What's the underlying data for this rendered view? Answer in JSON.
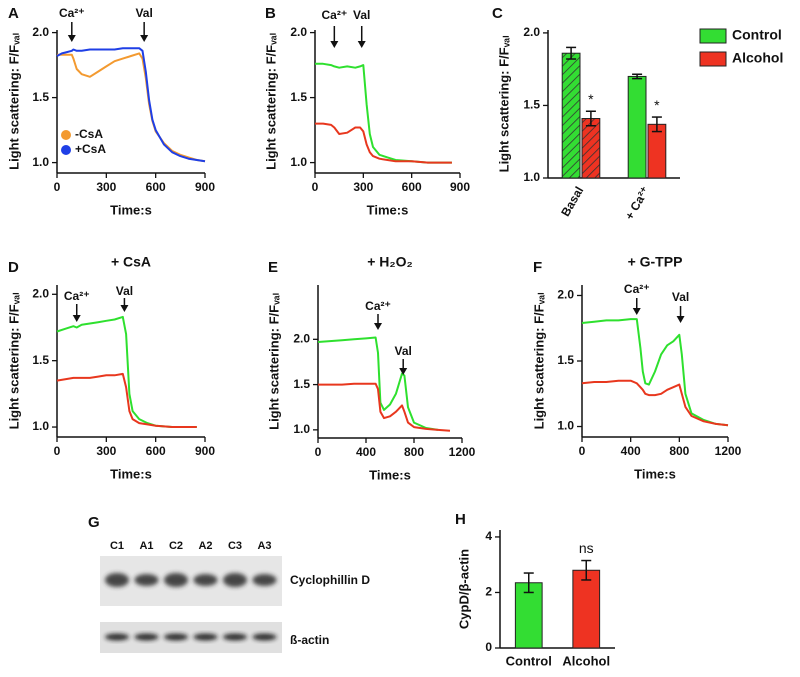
{
  "chart_data": [
    {
      "type": "line",
      "panel": "A",
      "y_label": "Light scattering: F/Fᵥₐₗ",
      "x_label": "Time:s",
      "xlim": [
        0,
        900
      ],
      "xticks": [
        0,
        300,
        600,
        900
      ],
      "ylim": [
        0.92,
        2.02
      ],
      "yticks": [
        {
          "value": 1,
          "label": "1.0"
        },
        1.5,
        {
          "value": 2,
          "label": "2.0"
        }
      ],
      "legend": "lower left",
      "x": [
        0,
        30,
        60,
        90,
        100,
        120,
        150,
        200,
        250,
        300,
        350,
        400,
        450,
        500,
        520,
        540,
        560,
        580,
        600,
        650,
        700,
        750,
        800,
        850,
        900
      ],
      "series": [
        {
          "name": "-CsA",
          "color": "#f39a30",
          "values": [
            1.83,
            1.83,
            1.83,
            1.83,
            1.8,
            1.72,
            1.68,
            1.66,
            1.7,
            1.74,
            1.78,
            1.8,
            1.82,
            1.84,
            1.8,
            1.65,
            1.45,
            1.32,
            1.24,
            1.15,
            1.09,
            1.06,
            1.04,
            1.02,
            1.01
          ]
        },
        {
          "name": "+CsA",
          "color": "#1f3fe6",
          "values": [
            1.82,
            1.84,
            1.85,
            1.86,
            1.87,
            1.86,
            1.86,
            1.87,
            1.87,
            1.87,
            1.87,
            1.88,
            1.88,
            1.88,
            1.86,
            1.7,
            1.48,
            1.33,
            1.25,
            1.14,
            1.08,
            1.05,
            1.03,
            1.02,
            1.01
          ]
        }
      ],
      "annotations": [
        {
          "text": "Ca²⁺",
          "x": 90
        },
        {
          "text": "Val",
          "x": 530
        }
      ]
    },
    {
      "type": "line",
      "panel": "B",
      "y_label": "Light scattering: F/Fᵥₐₗ",
      "x_label": "Time:s",
      "xlim": [
        0,
        900
      ],
      "xticks": [
        0,
        300,
        600,
        900
      ],
      "ylim": [
        0.92,
        2.02
      ],
      "yticks": [
        {
          "value": 1,
          "label": "1.0"
        },
        1.5,
        {
          "value": 2,
          "label": "2.0"
        }
      ],
      "x": [
        0,
        50,
        100,
        120,
        150,
        200,
        250,
        280,
        300,
        320,
        340,
        360,
        400,
        450,
        500,
        600,
        700,
        800,
        850
      ],
      "series": [
        {
          "name": "Control",
          "color": "#2ee02e",
          "values": [
            1.76,
            1.76,
            1.75,
            1.74,
            1.73,
            1.74,
            1.73,
            1.74,
            1.75,
            1.45,
            1.22,
            1.12,
            1.06,
            1.04,
            1.02,
            1.01,
            1.0,
            1.0,
            1.0
          ]
        },
        {
          "name": "Alcohol",
          "color": "#e8371e",
          "values": [
            1.3,
            1.3,
            1.29,
            1.27,
            1.22,
            1.23,
            1.27,
            1.27,
            1.24,
            1.14,
            1.08,
            1.05,
            1.03,
            1.02,
            1.01,
            1.01,
            1.0,
            1.0,
            1.0
          ]
        }
      ],
      "annotations": [
        {
          "text": "Ca²⁺",
          "x": 120
        },
        {
          "text": "Val",
          "x": 290
        }
      ]
    },
    {
      "type": "bar",
      "panel": "C",
      "y_label": "Light scattering: F/Fᵥₐₗ",
      "categories": [
        "Basal",
        "+ Ca²⁺"
      ],
      "hatched": [
        true,
        false
      ],
      "ylim": [
        1.0,
        2.02
      ],
      "yticks": [
        {
          "value": 1,
          "label": "1.0"
        },
        1.5,
        {
          "value": 2,
          "label": "2.0"
        }
      ],
      "legend": "upper right",
      "series": [
        {
          "name": "Control",
          "color": "#33dd33",
          "values": [
            1.86,
            1.7
          ],
          "errors": [
            0.04,
            0.015
          ]
        },
        {
          "name": "Alcohol",
          "color": "#ee3322",
          "values": [
            1.41,
            1.37
          ],
          "errors": [
            0.05,
            0.05
          ]
        }
      ],
      "annotations": [
        {
          "series": 1,
          "category": 0,
          "text": "*"
        },
        {
          "series": 1,
          "category": 1,
          "text": "*"
        }
      ]
    },
    {
      "type": "line",
      "panel": "D",
      "title": "+ CsA",
      "y_label": "Light scattering: F/Fᵥₐₗ",
      "x_label": "Time:s",
      "xlim": [
        0,
        900
      ],
      "xticks": [
        0,
        300,
        600,
        900
      ],
      "ylim": [
        0.925,
        2.07
      ],
      "yticks": [
        {
          "value": 1,
          "label": "1.0"
        },
        1.5,
        {
          "value": 2,
          "label": "2.0"
        }
      ],
      "x": [
        0,
        50,
        100,
        120,
        150,
        200,
        250,
        300,
        350,
        400,
        420,
        440,
        460,
        500,
        550,
        600,
        700,
        800,
        850
      ],
      "series": [
        {
          "name": "Control",
          "color": "#2ee02e",
          "values": [
            1.72,
            1.74,
            1.76,
            1.75,
            1.77,
            1.78,
            1.79,
            1.8,
            1.81,
            1.83,
            1.7,
            1.25,
            1.12,
            1.06,
            1.03,
            1.01,
            1.0,
            1.0,
            1.0
          ]
        },
        {
          "name": "Alcohol",
          "color": "#e8371e",
          "values": [
            1.35,
            1.36,
            1.37,
            1.37,
            1.37,
            1.37,
            1.38,
            1.39,
            1.39,
            1.4,
            1.3,
            1.12,
            1.06,
            1.03,
            1.02,
            1.01,
            1.0,
            1.0,
            1.0
          ]
        }
      ],
      "annotations": [
        {
          "text": "Ca²⁺",
          "x": 120
        },
        {
          "text": "Val",
          "x": 410
        }
      ]
    },
    {
      "type": "line",
      "panel": "E",
      "title": "+ H₂O₂",
      "y_label": "Light scattering: F/Fᵥₐₗ",
      "x_label": "Time:s",
      "xlim": [
        0,
        1200
      ],
      "xticks": [
        0,
        400,
        800,
        1200
      ],
      "ylim": [
        0.91,
        2.6
      ],
      "yticks": [
        {
          "value": 1,
          "label": "1.0"
        },
        1.5,
        {
          "value": 2,
          "label": "2.0"
        }
      ],
      "x": [
        0,
        100,
        200,
        300,
        400,
        480,
        500,
        520,
        550,
        600,
        650,
        700,
        720,
        750,
        800,
        900,
        1000,
        1100
      ],
      "series": [
        {
          "name": "Control",
          "color": "#2ee02e",
          "values": [
            1.97,
            1.98,
            1.99,
            2.0,
            2.01,
            2.02,
            1.85,
            1.3,
            1.22,
            1.28,
            1.4,
            1.62,
            1.6,
            1.25,
            1.08,
            1.02,
            1.0,
            null
          ]
        },
        {
          "name": "Alcohol",
          "color": "#e8371e",
          "values": [
            1.5,
            1.5,
            1.5,
            1.51,
            1.51,
            1.51,
            1.45,
            1.2,
            1.13,
            1.15,
            1.2,
            1.27,
            1.2,
            1.08,
            1.03,
            1.01,
            1.0,
            0.99
          ]
        }
      ],
      "annotations": [
        {
          "text": "Ca²⁺",
          "x": 500
        },
        {
          "text": "Val",
          "x": 710
        }
      ]
    },
    {
      "type": "line",
      "panel": "F",
      "title": "+ G-TPP",
      "y_label": "Light scattering: F/Fᵥₐₗ",
      "x_label": "Time:s",
      "xlim": [
        0,
        1200
      ],
      "xticks": [
        0,
        400,
        800,
        1200
      ],
      "ylim": [
        0.92,
        2.08
      ],
      "yticks": [
        {
          "value": 1,
          "label": "1.0"
        },
        1.5,
        {
          "value": 2,
          "label": "2.0"
        }
      ],
      "x": [
        0,
        100,
        200,
        300,
        400,
        450,
        480,
        500,
        520,
        550,
        600,
        650,
        700,
        750,
        800,
        820,
        850,
        900,
        1000,
        1100,
        1200
      ],
      "series": [
        {
          "name": "Control",
          "color": "#2ee02e",
          "values": [
            1.79,
            1.8,
            1.81,
            1.81,
            1.82,
            1.82,
            1.6,
            1.42,
            1.33,
            1.32,
            1.42,
            1.55,
            1.62,
            1.65,
            1.7,
            1.55,
            1.25,
            1.1,
            1.05,
            1.02,
            1.01
          ]
        },
        {
          "name": "Alcohol",
          "color": "#e8371e",
          "values": [
            1.33,
            1.34,
            1.34,
            1.35,
            1.35,
            1.33,
            1.3,
            1.28,
            1.25,
            1.24,
            1.24,
            1.25,
            1.28,
            1.3,
            1.32,
            1.25,
            1.15,
            1.08,
            1.04,
            1.02,
            1.01
          ]
        }
      ],
      "annotations": [
        {
          "text": "Ca²⁺",
          "x": 450
        },
        {
          "text": "Val",
          "x": 810
        }
      ]
    },
    {
      "type": "bar",
      "panel": "H",
      "y_label": "CypD/β-actin",
      "categories": [
        "Control",
        "Alcohol"
      ],
      "colors": [
        "#33dd33",
        "#ee3322"
      ],
      "ylim": [
        0,
        4.25
      ],
      "yticks": [
        0,
        2,
        4
      ],
      "values": [
        2.35,
        2.8
      ],
      "errors": [
        0.35,
        0.35
      ],
      "annotations": [
        {
          "category": 1,
          "text": "ns"
        }
      ]
    }
  ],
  "blot": {
    "panel": "G",
    "lanes": [
      "C1",
      "A1",
      "C2",
      "A2",
      "C3",
      "A3"
    ],
    "bands": [
      "Cyclophillin D",
      "ß-actin"
    ]
  }
}
